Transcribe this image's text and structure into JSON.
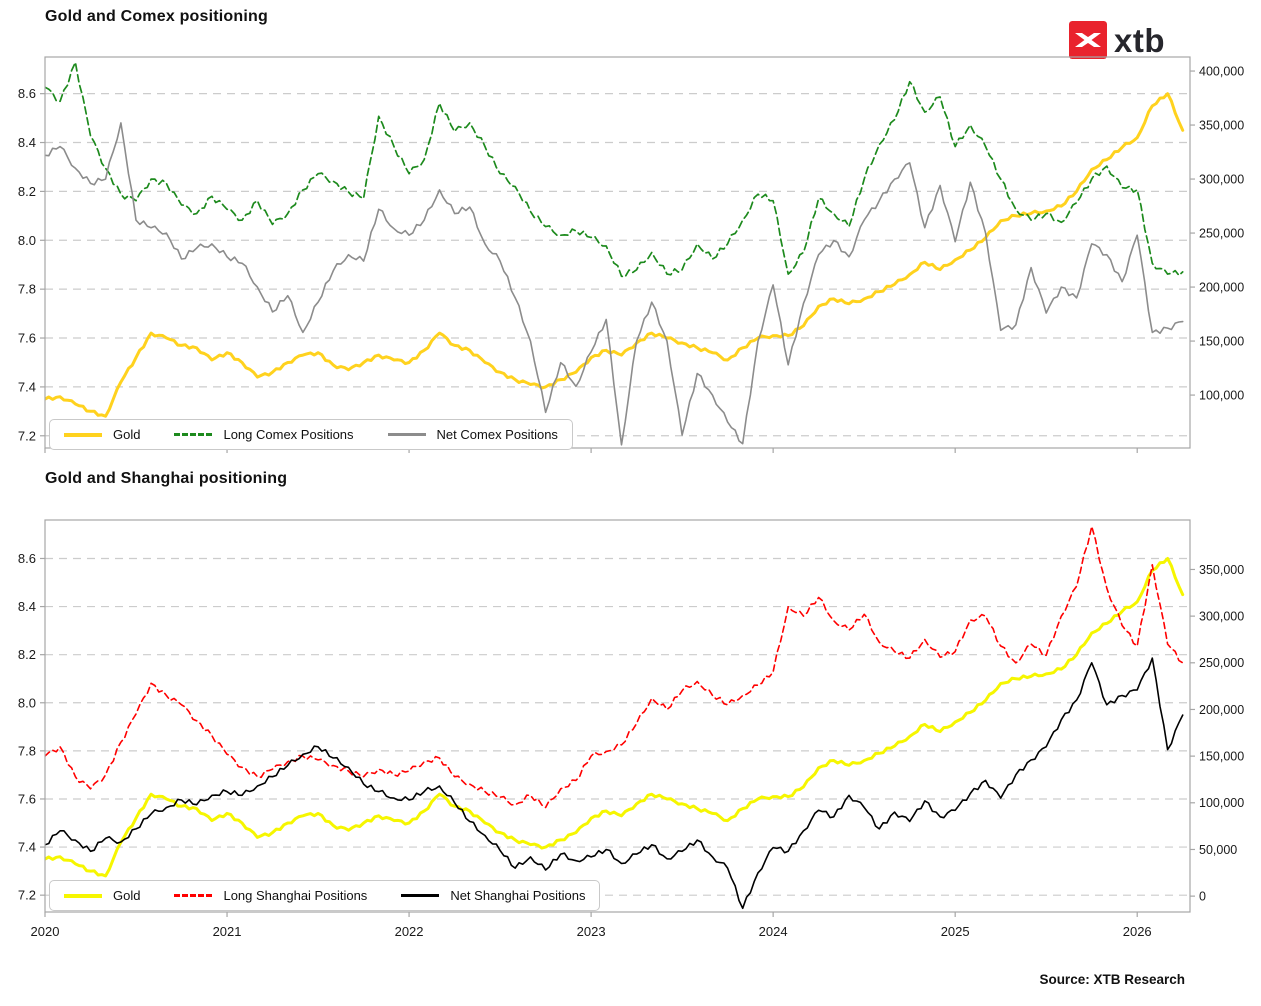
{
  "logo": {
    "text": "xtb",
    "box_color": "#e9232d",
    "glyph": "xtb-x-icon",
    "text_color": "#26262c"
  },
  "source": "Source: XTB Research",
  "axis_colors": {
    "grid": "#cccccc",
    "spine": "#a6a6a6",
    "label": "#1a1a1a"
  },
  "chart_data": [
    {
      "type": "line",
      "title": "Gold and Comex positioning",
      "x_label_visible": false,
      "xlim": [
        2020,
        2026.29
      ],
      "x_ticks": [
        2020,
        2021,
        2022,
        2023,
        2024,
        2025,
        2026
      ],
      "ylim_left": [
        7.15,
        8.75
      ],
      "yticks_left": [
        7.2,
        7.4,
        7.6,
        7.8,
        8.0,
        8.2,
        8.4,
        8.6
      ],
      "ylim_right": [
        51000,
        413000
      ],
      "yticks_right": [
        100000,
        150000,
        200000,
        250000,
        300000,
        350000,
        400000
      ],
      "grid": "horizontal-dashed",
      "legend_position": "bottom-left",
      "x": [
        2020.0,
        2020.083,
        2020.167,
        2020.25,
        2020.333,
        2020.417,
        2020.5,
        2020.583,
        2020.667,
        2020.75,
        2020.833,
        2020.917,
        2021.0,
        2021.083,
        2021.167,
        2021.25,
        2021.333,
        2021.417,
        2021.5,
        2021.583,
        2021.667,
        2021.75,
        2021.833,
        2021.917,
        2022.0,
        2022.083,
        2022.167,
        2022.25,
        2022.333,
        2022.417,
        2022.5,
        2022.583,
        2022.667,
        2022.75,
        2022.833,
        2022.917,
        2023.0,
        2023.083,
        2023.167,
        2023.25,
        2023.333,
        2023.417,
        2023.5,
        2023.583,
        2023.667,
        2023.75,
        2023.833,
        2023.917,
        2024.0,
        2024.083,
        2024.167,
        2024.25,
        2024.333,
        2024.417,
        2024.5,
        2024.583,
        2024.667,
        2024.75,
        2024.833,
        2024.917,
        2025.0,
        2025.083,
        2025.167,
        2025.25,
        2025.333,
        2025.417,
        2025.5,
        2025.583,
        2025.667,
        2025.75,
        2025.833,
        2025.917,
        2026.0,
        2026.083,
        2026.167,
        2026.25
      ],
      "series": [
        {
          "name": "Gold",
          "axis": "left",
          "color": "#FFD21E",
          "dash": null,
          "width": 3,
          "values": [
            7.35,
            7.36,
            7.33,
            7.3,
            7.28,
            7.42,
            7.52,
            7.62,
            7.6,
            7.57,
            7.56,
            7.51,
            7.54,
            7.5,
            7.44,
            7.46,
            7.5,
            7.53,
            7.54,
            7.49,
            7.47,
            7.5,
            7.53,
            7.51,
            7.5,
            7.55,
            7.62,
            7.57,
            7.55,
            7.5,
            7.46,
            7.43,
            7.41,
            7.4,
            7.43,
            7.46,
            7.52,
            7.55,
            7.53,
            7.58,
            7.62,
            7.6,
            7.58,
            7.56,
            7.54,
            7.51,
            7.56,
            7.6,
            7.61,
            7.61,
            7.65,
            7.73,
            7.76,
            7.74,
            7.76,
            7.79,
            7.82,
            7.86,
            7.91,
            7.88,
            7.92,
            7.96,
            8.01,
            8.08,
            8.1,
            8.11,
            8.12,
            8.14,
            8.2,
            8.29,
            8.33,
            8.38,
            8.42,
            8.55,
            8.6,
            8.45
          ]
        },
        {
          "name": "Long Comex Positions",
          "axis": "right",
          "color": "#1d8a1d",
          "dash": "7,4",
          "width": 1.7,
          "values": [
            385000,
            372000,
            408000,
            340000,
            310000,
            286000,
            280000,
            300000,
            296000,
            276000,
            268000,
            284000,
            272000,
            262000,
            280000,
            258000,
            268000,
            290000,
            305000,
            298000,
            288000,
            282000,
            358000,
            330000,
            305000,
            318000,
            370000,
            344000,
            352000,
            330000,
            305000,
            293000,
            270000,
            256000,
            248000,
            252000,
            246000,
            238000,
            210000,
            216000,
            232000,
            212000,
            216000,
            240000,
            226000,
            240000,
            262000,
            286000,
            280000,
            212000,
            232000,
            282000,
            268000,
            256000,
            300000,
            332000,
            355000,
            390000,
            362000,
            376000,
            330000,
            350000,
            330000,
            300000,
            272000,
            262000,
            268000,
            260000,
            278000,
            300000,
            312000,
            292000,
            290000,
            222000,
            212000,
            214000
          ]
        },
        {
          "name": "Net Comex Positions",
          "axis": "right",
          "color": "#8c8c8c",
          "dash": null,
          "width": 1.6,
          "values": [
            322000,
            330000,
            310000,
            296000,
            300000,
            352000,
            262000,
            255000,
            250000,
            226000,
            236000,
            240000,
            228000,
            222000,
            200000,
            177000,
            192000,
            158000,
            186000,
            215000,
            230000,
            224000,
            272000,
            254000,
            248000,
            262000,
            290000,
            268000,
            274000,
            240000,
            224000,
            190000,
            150000,
            84000,
            130000,
            108000,
            140000,
            170000,
            54000,
            150000,
            186000,
            150000,
            63000,
            120000,
            100000,
            75000,
            55000,
            150000,
            202000,
            128000,
            185000,
            230000,
            243000,
            228000,
            262000,
            280000,
            300000,
            315000,
            255000,
            294000,
            242000,
            297000,
            250000,
            160000,
            165000,
            218000,
            176000,
            200000,
            190000,
            240000,
            230000,
            205000,
            248000,
            158000,
            162000,
            168000
          ]
        }
      ]
    },
    {
      "type": "line",
      "title": "Gold and Shanghai positioning",
      "x_label_visible": true,
      "xlim": [
        2020,
        2026.29
      ],
      "x_ticks": [
        2020,
        2021,
        2022,
        2023,
        2024,
        2025,
        2026
      ],
      "ylim_left": [
        7.13,
        8.76
      ],
      "yticks_left": [
        7.2,
        7.4,
        7.6,
        7.8,
        8.0,
        8.2,
        8.4,
        8.6
      ],
      "ylim_right": [
        -17000,
        403000
      ],
      "yticks_right": [
        0,
        50000,
        100000,
        150000,
        200000,
        250000,
        300000,
        350000
      ],
      "grid": "horizontal-dashed",
      "legend_position": "bottom-left",
      "x": [
        2020.0,
        2020.083,
        2020.167,
        2020.25,
        2020.333,
        2020.417,
        2020.5,
        2020.583,
        2020.667,
        2020.75,
        2020.833,
        2020.917,
        2021.0,
        2021.083,
        2021.167,
        2021.25,
        2021.333,
        2021.417,
        2021.5,
        2021.583,
        2021.667,
        2021.75,
        2021.833,
        2021.917,
        2022.0,
        2022.083,
        2022.167,
        2022.25,
        2022.333,
        2022.417,
        2022.5,
        2022.583,
        2022.667,
        2022.75,
        2022.833,
        2022.917,
        2023.0,
        2023.083,
        2023.167,
        2023.25,
        2023.333,
        2023.417,
        2023.5,
        2023.583,
        2023.667,
        2023.75,
        2023.833,
        2023.917,
        2024.0,
        2024.083,
        2024.167,
        2024.25,
        2024.333,
        2024.417,
        2024.5,
        2024.583,
        2024.667,
        2024.75,
        2024.833,
        2024.917,
        2025.0,
        2025.083,
        2025.167,
        2025.25,
        2025.333,
        2025.417,
        2025.5,
        2025.583,
        2025.667,
        2025.75,
        2025.833,
        2025.917,
        2026.0,
        2026.083,
        2026.167,
        2026.25
      ],
      "series": [
        {
          "name": "Gold",
          "axis": "left",
          "color": "#f6f600",
          "dash": null,
          "width": 3,
          "values": [
            7.35,
            7.36,
            7.33,
            7.3,
            7.28,
            7.42,
            7.52,
            7.62,
            7.6,
            7.57,
            7.56,
            7.51,
            7.54,
            7.5,
            7.44,
            7.46,
            7.5,
            7.53,
            7.54,
            7.49,
            7.47,
            7.5,
            7.53,
            7.51,
            7.5,
            7.55,
            7.62,
            7.57,
            7.55,
            7.5,
            7.46,
            7.43,
            7.41,
            7.4,
            7.43,
            7.46,
            7.52,
            7.55,
            7.53,
            7.58,
            7.62,
            7.6,
            7.58,
            7.56,
            7.54,
            7.51,
            7.56,
            7.6,
            7.61,
            7.61,
            7.65,
            7.73,
            7.76,
            7.74,
            7.76,
            7.79,
            7.82,
            7.86,
            7.91,
            7.88,
            7.92,
            7.96,
            8.01,
            8.08,
            8.1,
            8.11,
            8.12,
            8.14,
            8.2,
            8.29,
            8.33,
            8.38,
            8.42,
            8.55,
            8.6,
            8.45
          ]
        },
        {
          "name": "Long Shanghai Positions",
          "axis": "right",
          "color": "#ff0000",
          "dash": "6,4",
          "width": 1.6,
          "values": [
            150000,
            160000,
            128000,
            115000,
            130000,
            165000,
            195000,
            228000,
            215000,
            205000,
            188000,
            172000,
            152000,
            138000,
            128000,
            136000,
            144000,
            150000,
            146000,
            140000,
            134000,
            128000,
            136000,
            130000,
            134000,
            144000,
            148000,
            128000,
            120000,
            112000,
            106000,
            98000,
            108000,
            95000,
            115000,
            124000,
            150000,
            155000,
            162000,
            185000,
            212000,
            200000,
            220000,
            230000,
            215000,
            205000,
            215000,
            226000,
            240000,
            310000,
            300000,
            320000,
            295000,
            285000,
            302000,
            272000,
            262000,
            255000,
            275000,
            256000,
            262000,
            296000,
            300000,
            268000,
            250000,
            270000,
            258000,
            300000,
            332000,
            396000,
            330000,
            290000,
            268000,
            355000,
            270000,
            250000
          ]
        },
        {
          "name": "Net Shanghai Positions",
          "axis": "right",
          "color": "#000000",
          "dash": null,
          "width": 1.6,
          "values": [
            55000,
            70000,
            60000,
            48000,
            62000,
            58000,
            72000,
            88000,
            95000,
            103000,
            98000,
            108000,
            112000,
            108000,
            118000,
            128000,
            140000,
            152000,
            160000,
            148000,
            138000,
            120000,
            112000,
            105000,
            103000,
            112000,
            118000,
            100000,
            80000,
            65000,
            49000,
            30000,
            42000,
            28000,
            45000,
            38000,
            42000,
            50000,
            35000,
            45000,
            55000,
            40000,
            48000,
            60000,
            42000,
            30000,
            -13000,
            25000,
            52000,
            48000,
            70000,
            92000,
            85000,
            108000,
            95000,
            72000,
            90000,
            80000,
            102000,
            85000,
            92000,
            110000,
            124000,
            105000,
            130000,
            146000,
            160000,
            189000,
            210000,
            250000,
            205000,
            215000,
            221000,
            255000,
            157000,
            194000
          ]
        }
      ]
    }
  ]
}
